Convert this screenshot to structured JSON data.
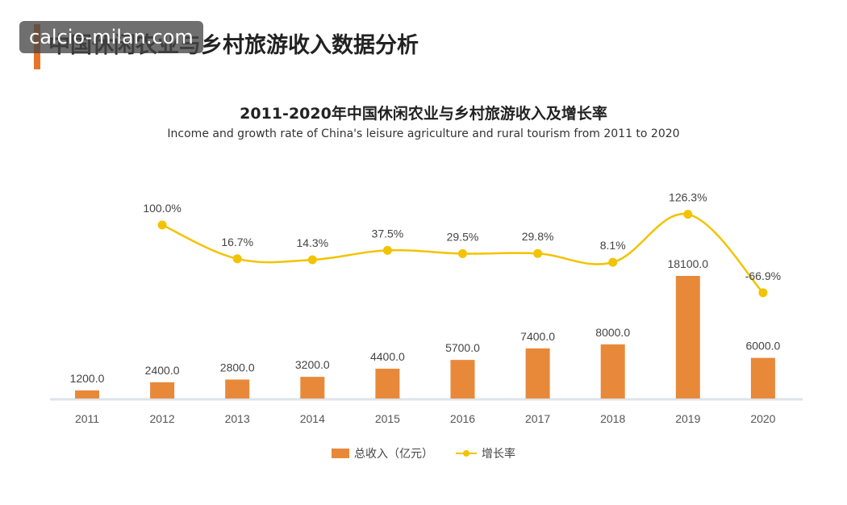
{
  "page": {
    "title": "中国休闲农业与乡村旅游收入数据分析",
    "watermark": "calcio-milan.com"
  },
  "colors": {
    "accent": "#e8742a",
    "bar": "#e8893a",
    "line": "#f2c300",
    "axis": "#dde3ea"
  },
  "chart_data": {
    "type": "bar",
    "title": "2011-2020年中国休闲农业与乡村旅游收入及增长率",
    "subtitle": "Income and growth rate of China's leisure agriculture and rural tourism from 2011 to  2020",
    "categories": [
      "2011",
      "2012",
      "2013",
      "2014",
      "2015",
      "2016",
      "2017",
      "2018",
      "2019",
      "2020"
    ],
    "series": [
      {
        "name": "总收入（亿元）",
        "type": "bar",
        "values": [
          1200.0,
          2400.0,
          2800.0,
          3200.0,
          4400.0,
          5700.0,
          7400.0,
          8000.0,
          18100.0,
          6000.0
        ],
        "labels": [
          "1200.0",
          "2400.0",
          "2800.0",
          "3200.0",
          "4400.0",
          "5700.0",
          "7400.0",
          "8000.0",
          "18100.0",
          "6000.0"
        ]
      },
      {
        "name": "增长率",
        "type": "line",
        "values": [
          null,
          100.0,
          16.7,
          14.3,
          37.5,
          29.5,
          29.8,
          8.1,
          126.3,
          -66.9
        ],
        "labels": [
          "",
          "100.0%",
          "16.7%",
          "14.3%",
          "37.5%",
          "29.5%",
          "29.8%",
          "8.1%",
          "126.3%",
          "-66.9%"
        ]
      }
    ],
    "legend_position": "bottom",
    "grid": false
  }
}
